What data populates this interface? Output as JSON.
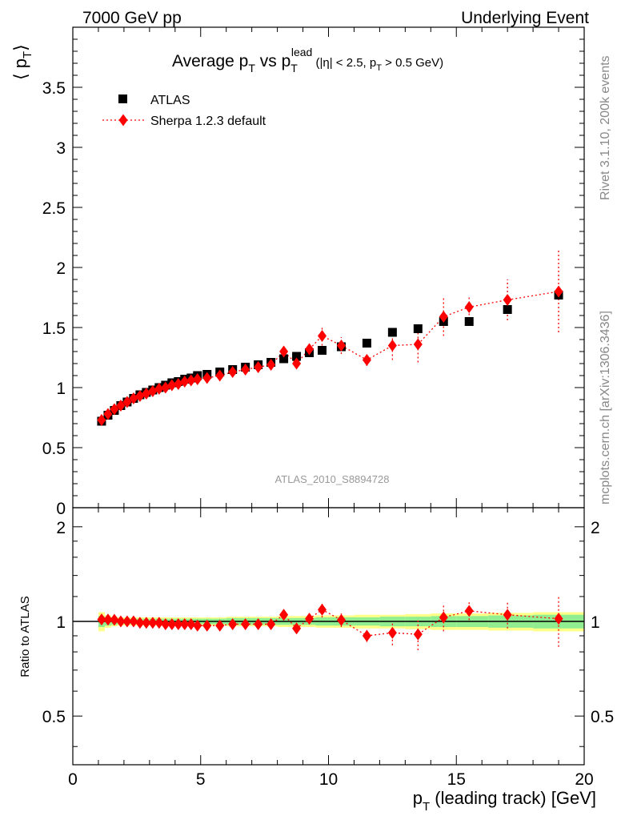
{
  "header": {
    "left": "7000 GeV pp",
    "right": "Underlying Event"
  },
  "title": {
    "main": "Average p",
    "main_sub": "T",
    "vs": " vs p",
    "vs_sub": "T",
    "vs_sup": "lead",
    "cuts_1": " (|η| < 2.5, p",
    "cuts_sub": "T",
    "cuts_2": " > 0.5 GeV)"
  },
  "side_labels": {
    "rivet": "Rivet 3.1.10,  200k events",
    "mcplots": "mcplots.cern.ch [arXiv:1306.3436]"
  },
  "analysis_id": "ATLAS_2010_S8894728",
  "axes": {
    "x_label_main": "p",
    "x_label_sub": "T",
    "x_label_rest": " (leading track) [GeV]",
    "y_top_open": "⟨ p",
    "y_top_sub": "T",
    "y_top_close": "⟩",
    "y_bottom": "Ratio to ATLAS"
  },
  "colors": {
    "data": "#000000",
    "mc": "#ff0000",
    "band_inner": "#90ee90",
    "band_outer": "#ffff88"
  },
  "chart_data": {
    "type": "scatter",
    "xlim": [
      0,
      20
    ],
    "ylim": [
      0,
      4
    ],
    "ratio_ylim": [
      0.35,
      2.3
    ],
    "x_ticks": [
      "0",
      "5",
      "10",
      "15",
      "20"
    ],
    "y_ticks": [
      "0",
      "0.5",
      "1",
      "1.5",
      "2",
      "2.5",
      "3",
      "3.5"
    ],
    "ratio_ticks": [
      "0.5",
      "1",
      "2"
    ],
    "legend": {
      "position": "top-left"
    },
    "series": [
      {
        "name": "ATLAS",
        "marker": "square",
        "x": [
          1.125,
          1.375,
          1.625,
          1.875,
          2.125,
          2.375,
          2.625,
          2.875,
          3.125,
          3.375,
          3.625,
          3.875,
          4.125,
          4.375,
          4.625,
          4.875,
          5.25,
          5.75,
          6.25,
          6.75,
          7.25,
          7.75,
          8.25,
          8.75,
          9.25,
          9.75,
          10.5,
          11.5,
          12.5,
          13.5,
          14.5,
          15.5,
          17,
          19
        ],
        "y": [
          0.72,
          0.77,
          0.81,
          0.85,
          0.88,
          0.91,
          0.94,
          0.96,
          0.98,
          1.0,
          1.02,
          1.04,
          1.05,
          1.07,
          1.08,
          1.1,
          1.11,
          1.13,
          1.15,
          1.17,
          1.19,
          1.21,
          1.24,
          1.26,
          1.29,
          1.31,
          1.34,
          1.37,
          1.46,
          1.49,
          1.55,
          1.55,
          1.65,
          1.77
        ],
        "band_inner": [
          0.04,
          0.03,
          0.025,
          0.02,
          0.02,
          0.02,
          0.02,
          0.02,
          0.02,
          0.02,
          0.02,
          0.02,
          0.02,
          0.02,
          0.02,
          0.02,
          0.02,
          0.02,
          0.025,
          0.025,
          0.025,
          0.025,
          0.025,
          0.025,
          0.025,
          0.03,
          0.03,
          0.03,
          0.035,
          0.035,
          0.04,
          0.04,
          0.045,
          0.05
        ],
        "band_outer": [
          0.07,
          0.045,
          0.035,
          0.03,
          0.03,
          0.03,
          0.03,
          0.03,
          0.03,
          0.03,
          0.03,
          0.03,
          0.03,
          0.03,
          0.03,
          0.03,
          0.03,
          0.03,
          0.035,
          0.035,
          0.035,
          0.035,
          0.04,
          0.04,
          0.04,
          0.045,
          0.045,
          0.05,
          0.05,
          0.055,
          0.06,
          0.06,
          0.065,
          0.07
        ]
      },
      {
        "name": "Sherpa 1.2.3 default",
        "marker": "diamond",
        "x": [
          1.125,
          1.375,
          1.625,
          1.875,
          2.125,
          2.375,
          2.625,
          2.875,
          3.125,
          3.375,
          3.625,
          3.875,
          4.125,
          4.375,
          4.625,
          4.875,
          5.25,
          5.75,
          6.25,
          6.75,
          7.25,
          7.75,
          8.25,
          8.75,
          9.25,
          9.75,
          10.5,
          11.5,
          12.5,
          13.5,
          14.5,
          15.5,
          17,
          19
        ],
        "y": [
          0.73,
          0.78,
          0.82,
          0.85,
          0.88,
          0.91,
          0.93,
          0.95,
          0.97,
          0.99,
          1.0,
          1.02,
          1.03,
          1.05,
          1.06,
          1.07,
          1.08,
          1.1,
          1.13,
          1.15,
          1.17,
          1.19,
          1.3,
          1.2,
          1.32,
          1.43,
          1.35,
          1.23,
          1.35,
          1.36,
          1.59,
          1.67,
          1.73,
          1.8
        ],
        "yerr": [
          0.005,
          0.005,
          0.005,
          0.005,
          0.005,
          0.005,
          0.005,
          0.005,
          0.005,
          0.006,
          0.006,
          0.006,
          0.007,
          0.008,
          0.009,
          0.01,
          0.01,
          0.012,
          0.015,
          0.018,
          0.02,
          0.025,
          0.04,
          0.03,
          0.05,
          0.08,
          0.07,
          0.05,
          0.12,
          0.15,
          0.16,
          0.1,
          0.17,
          0.34
        ],
        "ratio": [
          1.014,
          1.013,
          1.012,
          1.0,
          1.0,
          1.0,
          0.99,
          0.99,
          0.99,
          0.99,
          0.98,
          0.98,
          0.98,
          0.98,
          0.98,
          0.97,
          0.97,
          0.97,
          0.98,
          0.98,
          0.98,
          0.98,
          1.05,
          0.95,
          1.02,
          1.09,
          1.01,
          0.9,
          0.92,
          0.91,
          1.03,
          1.08,
          1.05,
          1.02
        ],
        "ratio_err": [
          0.005,
          0.005,
          0.005,
          0.005,
          0.005,
          0.005,
          0.005,
          0.005,
          0.005,
          0.006,
          0.006,
          0.006,
          0.007,
          0.008,
          0.009,
          0.01,
          0.01,
          0.012,
          0.015,
          0.015,
          0.018,
          0.02,
          0.03,
          0.025,
          0.04,
          0.06,
          0.05,
          0.04,
          0.08,
          0.1,
          0.1,
          0.07,
          0.1,
          0.19
        ]
      }
    ]
  }
}
